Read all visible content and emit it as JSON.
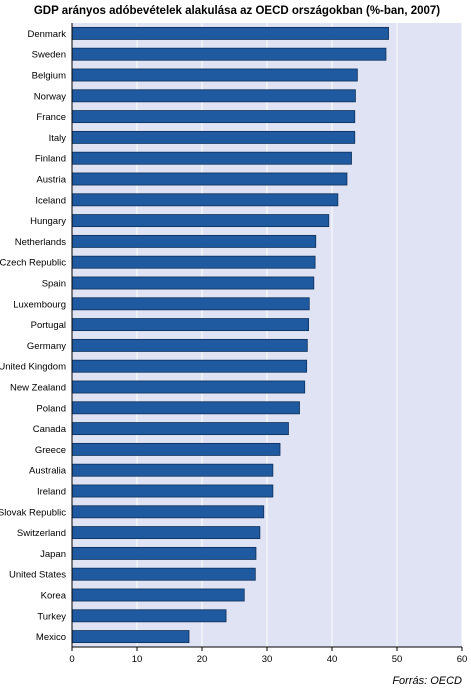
{
  "colors": {
    "bar": "#1f5aa0",
    "bar_edge": "#0d2f5a",
    "plot_background": "#dfe3f3",
    "grid": "#ffffff",
    "axis": "#000000"
  },
  "source": "Forrás: OECD",
  "chart_data": {
    "type": "bar",
    "orientation": "horizontal",
    "title": "GDP arányos adóbevételek alakulása az OECD országokban (%-ban, 2007)",
    "xlabel": "",
    "ylabel": "",
    "xlim": [
      0,
      60
    ],
    "xticks": [
      0,
      10,
      20,
      30,
      40,
      50,
      60
    ],
    "grid": true,
    "categories": [
      "Denmark",
      "Sweden",
      "Belgium",
      "Norway",
      "France",
      "Italy",
      "Finland",
      "Austria",
      "Iceland",
      "Hungary",
      "Netherlands",
      "Czech Republic",
      "Spain",
      "Luxembourg",
      "Portugal",
      "Germany",
      "United Kingdom",
      "New Zealand",
      "Poland",
      "Canada",
      "Greece",
      "Australia",
      "Ireland",
      "Slovak Republic",
      "Switzerland",
      "Japan",
      "United States",
      "Korea",
      "Turkey",
      "Mexico"
    ],
    "values": [
      48.7,
      48.3,
      43.9,
      43.6,
      43.5,
      43.5,
      43.0,
      42.3,
      40.9,
      39.5,
      37.5,
      37.4,
      37.2,
      36.5,
      36.4,
      36.2,
      36.1,
      35.8,
      35.0,
      33.3,
      32.0,
      30.9,
      30.9,
      29.5,
      28.9,
      28.3,
      28.2,
      26.5,
      23.7,
      18.0
    ]
  }
}
